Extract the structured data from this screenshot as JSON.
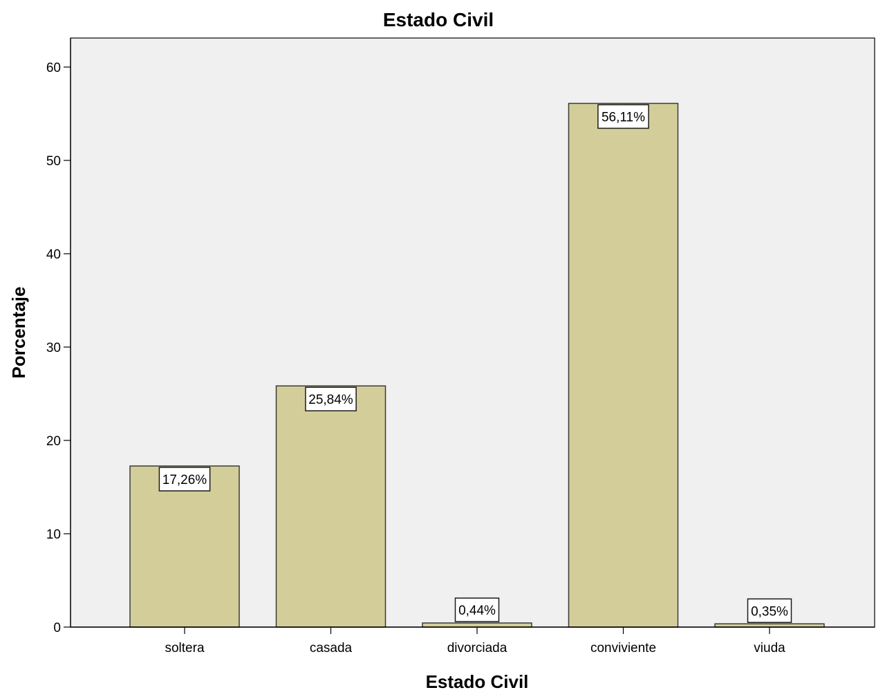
{
  "chart_data": {
    "type": "bar",
    "title": "Estado Civil",
    "xlabel": "Estado Civil",
    "ylabel": "Porcentaje",
    "categories": [
      "soltera",
      "casada",
      "divorciada",
      "conviviente",
      "viuda"
    ],
    "values": [
      17.26,
      25.84,
      0.44,
      56.11,
      0.35
    ],
    "data_labels": [
      "17,26%",
      "25,84%",
      "0,44%",
      "56,11%",
      "0,35%"
    ],
    "yticks": [
      0,
      10,
      20,
      30,
      40,
      50,
      60
    ],
    "ylim": [
      0,
      63
    ],
    "grid": false,
    "legend": "none",
    "colors": {
      "bar_fill": "#d3ce99",
      "bar_stroke": "#3a3a3a",
      "plot_background": "#f0f0f0",
      "axis": "#000000"
    }
  }
}
